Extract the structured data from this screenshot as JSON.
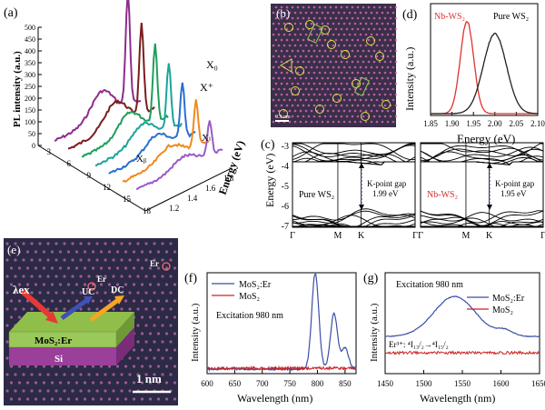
{
  "panels": {
    "a": {
      "label": "(a)",
      "ylabel": "PL intensity (a.u.)",
      "yticks": [
        "0",
        "50",
        "100",
        "150",
        "200",
        "250",
        "300",
        "350",
        "400",
        "450",
        "500"
      ],
      "xticks": [
        "3",
        "6",
        "9",
        "12",
        "15",
        "18"
      ],
      "zlabel": "Energy (eV)",
      "zticks": [
        "1.2",
        "1.4",
        "1.6",
        "1.8"
      ],
      "annotations": [
        "X₀",
        "X⁺",
        "Xₗ",
        "Xᵦ"
      ],
      "colors": [
        "#8e2c8e",
        "#7a1c1c",
        "#1f9e5b",
        "#1aa59a",
        "#2a6fd1",
        "#f08a1c",
        "#9b59c8"
      ]
    },
    "b": {
      "label": "(b)",
      "scale_text": "0.5 nm"
    },
    "c": {
      "label": "(c)",
      "ylabel": "Energy (eV)",
      "yticks": [
        "-3",
        "-4",
        "-5",
        "-6",
        "-7"
      ],
      "kpath": [
        "Γ",
        "M",
        "K",
        "Γ"
      ],
      "left": {
        "name": "Pure WS₂",
        "gap_title": "K-point gap",
        "gap_value": "1.99 eV"
      },
      "right": {
        "name": "Nb-WS₂",
        "gap_title": "K-point gap",
        "gap_value": "1.95 eV"
      }
    },
    "d": {
      "label": "(d)",
      "xlabel": "Energy (eV)",
      "ylabel": "Intensity (a.u.)",
      "xticks": [
        "1.85",
        "1.90",
        "1.95",
        "2.00",
        "2.05",
        "2.10"
      ],
      "legend_nb": "Nb-WS₂",
      "legend_pure": "Pure WS₂"
    },
    "e": {
      "label": "(e)",
      "er1": "Er",
      "er2": "Er",
      "lambda": "λex",
      "uc": "UC",
      "dc": "DC",
      "layer_top": "MoS₂:Er",
      "layer_bottom": "Si",
      "scale": "1 nm"
    },
    "f": {
      "label": "(f)",
      "xlabel": "Wavelength (nm)",
      "ylabel": "Intensity (a.u.)",
      "xticks": [
        "600",
        "650",
        "700",
        "750",
        "800",
        "850"
      ],
      "legend": [
        "MoS₂:Er",
        "MoS₂"
      ],
      "note": "Excitation 980 nm"
    },
    "g": {
      "label": "(g)",
      "xlabel": "Wavelength (nm)",
      "ylabel": "Intensity (a.u.)",
      "xticks": [
        "1450",
        "1500",
        "1550",
        "1600",
        "1650"
      ],
      "legend": [
        "MoS₂:Er",
        "MoS₂"
      ],
      "note": "Excitation 980 nm",
      "transition": "Er³⁺: ⁴I₁₃/₂→⁴I₁₅/₂"
    }
  },
  "chart_data": [
    {
      "type": "line",
      "panel": "d",
      "x_range": [
        1.85,
        2.1
      ],
      "xlabel": "Energy (eV)",
      "ylabel": "Intensity (a.u.)",
      "series": [
        {
          "name": "Nb-WS₂",
          "color": "#e0322b",
          "peak": 1.935,
          "width": 0.022
        },
        {
          "name": "Pure WS₂",
          "color": "#222222",
          "peak": 2.0,
          "width": 0.038
        }
      ]
    },
    {
      "type": "line",
      "panel": "f",
      "x_range": [
        600,
        870
      ],
      "xlabel": "Wavelength (nm)",
      "ylabel": "Intensity (a.u.)",
      "series": [
        {
          "name": "MoS₂:Er",
          "color": "#3b4ea8",
          "peaks": [
            [
              796,
              1.0
            ],
            [
              830,
              0.58
            ],
            [
              850,
              0.22
            ]
          ]
        },
        {
          "name": "MoS₂",
          "color": "#cc2222",
          "baseline": 0.02
        }
      ]
    },
    {
      "type": "line",
      "panel": "g",
      "x_range": [
        1450,
        1650
      ],
      "xlabel": "Wavelength (nm)",
      "ylabel": "Intensity (a.u.)",
      "series": [
        {
          "name": "MoS₂:Er",
          "color": "#3b4ea8",
          "peak": 1540,
          "baseline": 0.45
        },
        {
          "name": "MoS₂",
          "color": "#cc2222",
          "baseline": 0.1
        }
      ]
    }
  ]
}
